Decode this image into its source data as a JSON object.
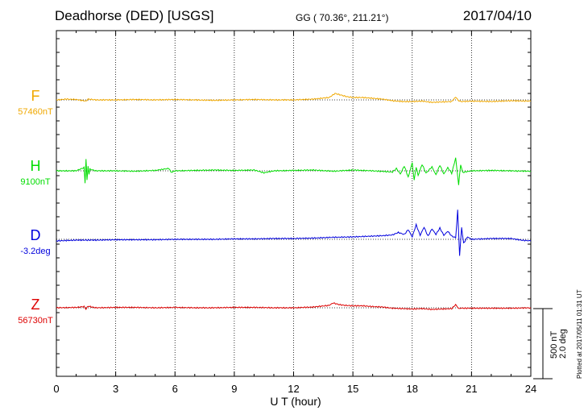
{
  "header": {
    "station": "Deadhorse (DED)  [USGS]",
    "coordinates": "GG ( 70.36°, 211.21°)",
    "date": "2017/04/10"
  },
  "footer": {
    "plotted": "Plotted at 2017/05/11 01:31  UT"
  },
  "chart_data": {
    "type": "line",
    "title": "Deadhorse (DED)  [USGS]",
    "xlabel": "U T (hour)",
    "xlim": [
      0,
      24
    ],
    "xticks": [
      0,
      3,
      6,
      9,
      12,
      15,
      18,
      21,
      24
    ],
    "scale_bar": {
      "line1": "500 nT",
      "line2": "2.0 deg"
    },
    "grid": "vertical dotted lines every 3 hours",
    "series": [
      {
        "name": "F",
        "baseline_label": "57460nT",
        "color": "#f0a800",
        "t": [
          0,
          0.5,
          1,
          1.5,
          1.6,
          2,
          3,
          4,
          5,
          6,
          7,
          8,
          9,
          10,
          11,
          12,
          13,
          13.8,
          14.1,
          14.4,
          14.7,
          15,
          15.5,
          16,
          16.5,
          17,
          17.5,
          18,
          18.5,
          19,
          19.5,
          20,
          20.2,
          20.35,
          20.5,
          21,
          22,
          23,
          24
        ],
        "v": [
          0,
          10,
          5,
          -15,
          10,
          0,
          0,
          5,
          0,
          5,
          0,
          -5,
          0,
          5,
          0,
          0,
          10,
          30,
          80,
          60,
          40,
          30,
          30,
          20,
          10,
          -10,
          -20,
          -20,
          -15,
          -30,
          -25,
          -20,
          35,
          -10,
          -20,
          -15,
          -20,
          -10,
          -15
        ]
      },
      {
        "name": "H",
        "baseline_label": "9100nT",
        "color": "#00dd00",
        "t": [
          0,
          1,
          1.4,
          1.45,
          1.5,
          1.55,
          1.6,
          1.65,
          1.7,
          2,
          3,
          4,
          5,
          5.7,
          5.8,
          6,
          7,
          8,
          9,
          10,
          10.5,
          11,
          12,
          13,
          14,
          15,
          16,
          17,
          17.2,
          17.4,
          17.6,
          17.8,
          18,
          18.1,
          18.2,
          18.3,
          18.5,
          18.7,
          19,
          19.2,
          19.4,
          19.6,
          19.8,
          20,
          20.2,
          20.35,
          20.45,
          20.55,
          21,
          22,
          23,
          24
        ],
        "v": [
          0,
          0,
          40,
          -150,
          150,
          -120,
          60,
          -40,
          20,
          0,
          0,
          -5,
          5,
          30,
          -20,
          0,
          5,
          10,
          5,
          10,
          -25,
          0,
          5,
          10,
          -5,
          10,
          0,
          -15,
          30,
          -40,
          60,
          -80,
          100,
          -120,
          50,
          -60,
          80,
          -30,
          50,
          -50,
          70,
          -40,
          40,
          -30,
          160,
          -180,
          80,
          -20,
          0,
          5,
          0,
          -5
        ]
      },
      {
        "name": "D",
        "baseline_label": "-3.2deg",
        "color": "#0000dd",
        "t": [
          0,
          1,
          2,
          3,
          4,
          5,
          6,
          7,
          8,
          9,
          10,
          11,
          12,
          13,
          14,
          15,
          16,
          16.5,
          17,
          17.3,
          17.6,
          17.8,
          18,
          18.2,
          18.4,
          18.6,
          18.8,
          19,
          19.2,
          19.4,
          19.6,
          19.8,
          20,
          20.2,
          20.3,
          20.4,
          20.5,
          20.6,
          20.8,
          21,
          22,
          23,
          23.5,
          24
        ],
        "v": [
          -20,
          -10,
          -10,
          -5,
          -5,
          -5,
          0,
          0,
          0,
          5,
          5,
          10,
          10,
          15,
          25,
          30,
          40,
          45,
          55,
          85,
          60,
          120,
          30,
          180,
          50,
          150,
          40,
          130,
          60,
          140,
          50,
          100,
          40,
          20,
          360,
          -200,
          150,
          -50,
          30,
          0,
          10,
          10,
          -10,
          -20
        ]
      },
      {
        "name": "Z",
        "baseline_label": "56730nT",
        "color": "#dd0000",
        "t": [
          0,
          1,
          1.4,
          1.5,
          1.6,
          2,
          3,
          4,
          5,
          6,
          7,
          8,
          9,
          10,
          11,
          12,
          13,
          13.8,
          14,
          14.3,
          14.6,
          15,
          15.5,
          16,
          16.5,
          17,
          17.5,
          18,
          18.5,
          19,
          19.5,
          20,
          20.2,
          20.35,
          20.5,
          21,
          22,
          23,
          24
        ],
        "v": [
          0,
          5,
          15,
          -15,
          20,
          0,
          5,
          5,
          0,
          5,
          0,
          0,
          5,
          5,
          0,
          0,
          10,
          30,
          60,
          40,
          30,
          25,
          25,
          15,
          10,
          -5,
          -10,
          -15,
          -10,
          -20,
          -15,
          -10,
          40,
          -10,
          -5,
          -5,
          -5,
          -5,
          0
        ]
      }
    ]
  }
}
